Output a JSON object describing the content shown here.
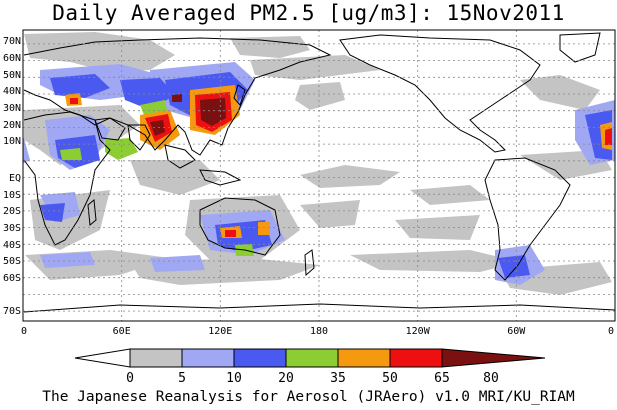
{
  "title": "Daily Averaged PM2.5 [ug/m3]: 15Nov2011",
  "footer": "The Japanese Reanalysis for Aerosol (JRAero) v1.0 MRI/KU_RIAM",
  "lat_labels": [
    "70N",
    "60N",
    "50N",
    "40N",
    "30N",
    "20N",
    "10N",
    "EQ",
    "10S",
    "20S",
    "30S",
    "40S",
    "50S",
    "60S",
    "70S"
  ],
  "lon_labels": [
    "0",
    "60E",
    "120E",
    "180",
    "120W",
    "60W",
    "0"
  ],
  "colorbar": {
    "ticks": [
      "0",
      "5",
      "10",
      "20",
      "35",
      "50",
      "65",
      "80"
    ],
    "colors": [
      "#ffffff",
      "#c4c4c4",
      "#a0a8f4",
      "#4a5af0",
      "#8ccd34",
      "#f59a10",
      "#ee1010",
      "#7a1010"
    ]
  }
}
